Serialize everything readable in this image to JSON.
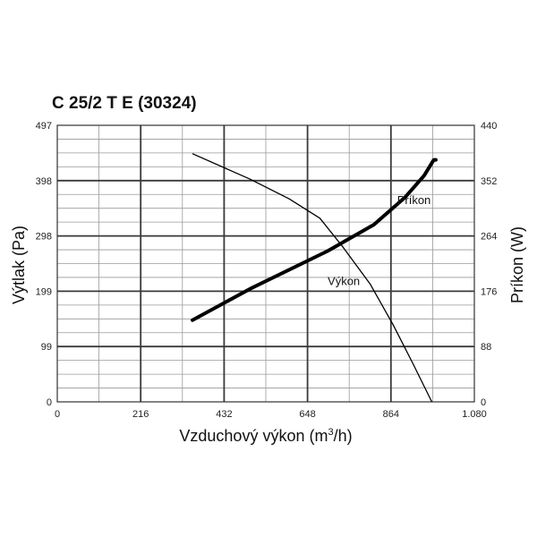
{
  "chart_data": {
    "type": "line",
    "title": "C 25/2 T E (30324)",
    "xlabel": "Vzduchový výkon (m",
    "xlabel_sup": "3",
    "xlabel_tail": "/h)",
    "ylabel": "Výtlak (Pa)",
    "y2label": "Príkon (W)",
    "xlim": [
      0,
      1080
    ],
    "ylim": [
      0,
      497
    ],
    "y2lim": [
      0,
      440
    ],
    "x_ticks": [
      "0",
      "216",
      "432",
      "648",
      "864",
      "1.080"
    ],
    "y_ticks": [
      "0",
      "99",
      "199",
      "298",
      "398",
      "497"
    ],
    "y2_ticks": [
      "0",
      "88",
      "176",
      "264",
      "352",
      "440"
    ],
    "grid": true,
    "series": [
      {
        "name": "Výkon",
        "axis": "left",
        "line_weight": "thin",
        "x": [
          350,
          500,
          600,
          680,
          740,
          810,
          870,
          920,
          970
        ],
        "y": [
          446,
          400,
          365,
          330,
          278,
          212,
          138,
          70,
          0
        ]
      },
      {
        "name": "Príkon",
        "axis": "right",
        "line_weight": "thick",
        "x": [
          350,
          500,
          700,
          820,
          900,
          950,
          975,
          980
        ],
        "y": [
          130,
          180,
          240,
          282,
          325,
          360,
          385,
          385
        ]
      }
    ]
  }
}
